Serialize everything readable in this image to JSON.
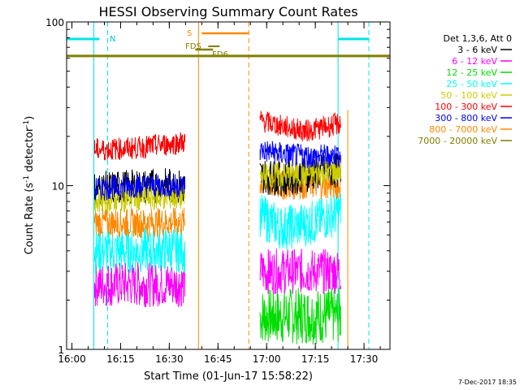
{
  "chart_data": {
    "type": "line",
    "title": "HESSI Observing Summary Count Rates",
    "xlabel": "Start Time (01-Jun-17 15:58:22)",
    "ylabel": "Count Rate (s",
    "ylabel_sup1": "-1",
    "ylabel_mid": " detector",
    "ylabel_sup2": "-1",
    "ylabel_end": ")",
    "y_scale": "log",
    "ylim": [
      1,
      100
    ],
    "xlim": [
      "15:58:22",
      "17:38:00"
    ],
    "x_ticks": [
      "16:00",
      "16:15",
      "16:30",
      "16:45",
      "17:00",
      "17:15",
      "17:30"
    ],
    "y_ticks": [
      "1",
      "10",
      "100"
    ],
    "legend_title": "Det 1,3,6, Att 0",
    "legend_position": "right",
    "series": [
      {
        "name": "3 - 6 keV",
        "color": "#000000",
        "segments": [
          {
            "x": [
              "16:07",
              "16:20",
              "16:30",
              "16:35"
            ],
            "y": [
              9.5,
              9.8,
              10.0,
              9.7
            ]
          },
          {
            "x": [
              "16:58",
              "17:05",
              "17:15",
              "17:23"
            ],
            "y": [
              11.5,
              11.0,
              12.0,
              12.5
            ]
          }
        ]
      },
      {
        "name": "6 - 12 keV",
        "color": "#ff00ff",
        "segments": [
          {
            "x": [
              "16:07",
              "16:20",
              "16:30",
              "16:35"
            ],
            "y": [
              2.5,
              2.5,
              2.5,
              2.5
            ]
          },
          {
            "x": [
              "16:58",
              "17:05",
              "17:15",
              "17:23"
            ],
            "y": [
              3.0,
              3.0,
              3.0,
              3.0
            ]
          }
        ]
      },
      {
        "name": "12 - 25 keV",
        "color": "#00dd00",
        "segments": [
          {
            "x": [
              "16:58",
              "17:05",
              "17:15",
              "17:23"
            ],
            "y": [
              1.6,
              1.6,
              1.6,
              1.6
            ]
          }
        ]
      },
      {
        "name": "25 - 50 keV",
        "color": "#00ffff",
        "segments": [
          {
            "x": [
              "16:07",
              "16:20",
              "16:30",
              "16:35"
            ],
            "y": [
              4.0,
              4.0,
              4.1,
              4.0
            ]
          },
          {
            "x": [
              "16:58",
              "17:05",
              "17:15",
              "17:23"
            ],
            "y": [
              6.5,
              5.5,
              6.0,
              7.0
            ]
          }
        ]
      },
      {
        "name": "50 - 100 keV",
        "color": "#cccc00",
        "segments": [
          {
            "x": [
              "16:07",
              "16:20",
              "16:30",
              "16:35"
            ],
            "y": [
              8.2,
              8.4,
              8.5,
              8.5
            ]
          },
          {
            "x": [
              "16:58",
              "17:05",
              "17:15",
              "17:23"
            ],
            "y": [
              11.5,
              11.5,
              11.8,
              12.5
            ]
          }
        ]
      },
      {
        "name": "100 - 300 keV",
        "color": "#ff0000",
        "segments": [
          {
            "x": [
              "16:07",
              "16:20",
              "16:30",
              "16:35"
            ],
            "y": [
              16.5,
              17.0,
              18.0,
              18.5
            ]
          },
          {
            "x": [
              "16:58",
              "17:05",
              "17:12",
              "17:23"
            ],
            "y": [
              25.0,
              23.0,
              21.5,
              24.0
            ]
          }
        ]
      },
      {
        "name": "300 - 800 keV",
        "color": "#0000ff",
        "segments": [
          {
            "x": [
              "16:07",
              "16:20",
              "16:30",
              "16:35"
            ],
            "y": [
              9.5,
              10.0,
              10.0,
              10.0
            ]
          },
          {
            "x": [
              "16:58",
              "17:05",
              "17:15",
              "17:23"
            ],
            "y": [
              16.5,
              15.5,
              15.0,
              15.5
            ]
          }
        ]
      },
      {
        "name": "800 - 7000 keV",
        "color": "#ff8800",
        "segments": [
          {
            "x": [
              "16:07",
              "16:20",
              "16:30",
              "16:35"
            ],
            "y": [
              6.0,
              5.9,
              6.0,
              6.0
            ]
          },
          {
            "x": [
              "16:58",
              "17:05",
              "17:15",
              "17:23"
            ],
            "y": [
              10.5,
              10.0,
              10.2,
              10.0
            ]
          }
        ]
      },
      {
        "name": "7000 - 20000 keV",
        "color": "#808000",
        "segments": [
          {
            "x": [
              "15:58:22",
              "17:38"
            ],
            "y": [
              62,
              62
            ]
          }
        ]
      }
    ],
    "annotations": {
      "n_label": "N",
      "s_label": "S",
      "fds_label": "FDS",
      "fd6_label": "FD6",
      "timestamp": "7-Dec-2017 18:35"
    },
    "markers": {
      "cyan_solid": [
        "16:06:45",
        "17:22:00"
      ],
      "cyan_dashed": [
        "16:11:00",
        "17:31:30"
      ],
      "orange_solid": [
        "16:39:00"
      ],
      "orange_dashed": [
        "16:54:30"
      ],
      "orange_vertical_right": "17:25:00",
      "night_bars": [
        [
          "15:58:22",
          "16:08:30"
        ],
        [
          "17:22:00",
          "17:31:30"
        ]
      ],
      "saa_bar": [
        "16:40:00",
        "16:54:30"
      ],
      "fds_bar": [
        "16:38:00",
        "16:43:30"
      ],
      "fd6_bar": [
        "16:42:00",
        "16:45:30"
      ]
    }
  }
}
